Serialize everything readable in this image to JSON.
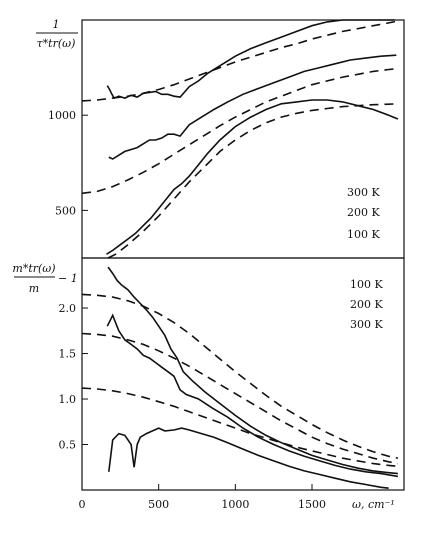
{
  "chart_data": [
    {
      "type": "line",
      "panel": "top",
      "ylabel_lines": [
        "1",
        "τ*tr(ω)"
      ],
      "xlim": [
        0,
        2100
      ],
      "ylim": [
        250,
        1500
      ],
      "yticks": [
        {
          "value": 1000,
          "label": "1000"
        },
        {
          "value": 500,
          "label": "500"
        }
      ],
      "legend": [
        "300 K",
        "200 K",
        "100 K"
      ],
      "legend_position": "bottom-right",
      "series": [
        {
          "style": "solid",
          "label": "300 K",
          "x": [
            165,
            180,
            195,
            210,
            240,
            280,
            320,
            360,
            400,
            440,
            480,
            520,
            560,
            600,
            640,
            700,
            760,
            820,
            900,
            1000,
            1100,
            1200,
            1300,
            1400,
            1500,
            1600,
            1700,
            1800,
            1900,
            2000,
            2040
          ],
          "y": [
            1155,
            1135,
            1110,
            1090,
            1100,
            1090,
            1105,
            1095,
            1115,
            1120,
            1125,
            1110,
            1110,
            1100,
            1095,
            1150,
            1180,
            1220,
            1260,
            1310,
            1350,
            1380,
            1410,
            1440,
            1470,
            1490,
            1505,
            1515,
            1520,
            1525,
            1525
          ]
        },
        {
          "style": "solid",
          "label": "200 K",
          "x": [
            175,
            200,
            240,
            280,
            320,
            360,
            400,
            440,
            480,
            520,
            560,
            600,
            640,
            700,
            780,
            860,
            950,
            1050,
            1150,
            1250,
            1350,
            1450,
            1550,
            1650,
            1750,
            1850,
            1950,
            2050
          ],
          "y": [
            780,
            770,
            790,
            810,
            820,
            830,
            850,
            870,
            870,
            880,
            900,
            900,
            890,
            950,
            990,
            1030,
            1070,
            1110,
            1140,
            1170,
            1200,
            1230,
            1250,
            1270,
            1290,
            1300,
            1310,
            1315
          ]
        },
        {
          "style": "solid",
          "label": "100 K",
          "x": [
            160,
            200,
            250,
            300,
            350,
            400,
            450,
            500,
            550,
            600,
            650,
            700,
            760,
            820,
            900,
            1000,
            1100,
            1200,
            1300,
            1400,
            1500,
            1600,
            1700,
            1800,
            1900,
            2000,
            2060
          ],
          "y": [
            270,
            290,
            320,
            350,
            380,
            420,
            460,
            510,
            560,
            610,
            640,
            680,
            740,
            800,
            870,
            940,
            990,
            1030,
            1060,
            1070,
            1080,
            1080,
            1070,
            1050,
            1030,
            1000,
            980
          ]
        },
        {
          "style": "dashed",
          "x": [
            0,
            100,
            200,
            300,
            400,
            500,
            600,
            700,
            800,
            900,
            1000,
            1100,
            1200,
            1300,
            1400,
            1500,
            1600,
            1700,
            1800,
            1900,
            2000,
            2060
          ],
          "y": [
            1075,
            1080,
            1090,
            1100,
            1115,
            1135,
            1160,
            1190,
            1220,
            1250,
            1280,
            1305,
            1330,
            1355,
            1375,
            1400,
            1420,
            1440,
            1455,
            1470,
            1485,
            1495
          ]
        },
        {
          "style": "dashed",
          "x": [
            0,
            100,
            200,
            300,
            400,
            500,
            600,
            700,
            800,
            900,
            1000,
            1100,
            1200,
            1300,
            1400,
            1500,
            1600,
            1700,
            1800,
            1900,
            2000,
            2060
          ],
          "y": [
            590,
            600,
            625,
            660,
            700,
            745,
            795,
            845,
            895,
            945,
            990,
            1030,
            1070,
            1100,
            1130,
            1160,
            1180,
            1200,
            1215,
            1230,
            1240,
            1245
          ]
        },
        {
          "style": "dashed",
          "x": [
            170,
            220,
            300,
            400,
            500,
            600,
            700,
            800,
            900,
            1000,
            1100,
            1200,
            1300,
            1400,
            1500,
            1600,
            1700,
            1800,
            1900,
            2000,
            2060
          ],
          "y": [
            250,
            270,
            320,
            390,
            470,
            560,
            650,
            730,
            810,
            870,
            920,
            960,
            990,
            1010,
            1025,
            1035,
            1045,
            1050,
            1055,
            1058,
            1060
          ]
        }
      ]
    },
    {
      "type": "line",
      "panel": "bottom",
      "ylabel_lines": [
        "m*tr(ω)",
        "m",
        "− 1"
      ],
      "xlabel": "ω, cm⁻¹",
      "xlim": [
        0,
        2100
      ],
      "ylim": [
        0,
        2.55
      ],
      "xticks": [
        {
          "value": 0,
          "label": "0"
        },
        {
          "value": 500,
          "label": "500"
        },
        {
          "value": 1000,
          "label": "1000"
        },
        {
          "value": 1500,
          "label": "1500"
        }
      ],
      "yticks": [
        {
          "value": 2.0,
          "label": "2.0"
        },
        {
          "value": 1.5,
          "label": "1.5"
        },
        {
          "value": 1.0,
          "label": "1.0"
        },
        {
          "value": 0.5,
          "label": "0.5"
        }
      ],
      "legend": [
        "100 K",
        "200 K",
        "300 K"
      ],
      "legend_position": "top-right",
      "series": [
        {
          "style": "solid",
          "label": "100 K",
          "x": [
            170,
            200,
            230,
            260,
            300,
            340,
            380,
            420,
            460,
            500,
            540,
            580,
            620,
            660,
            720,
            800,
            900,
            1000,
            1100,
            1200,
            1300,
            1400,
            1500,
            1600,
            1700,
            1800,
            1900,
            2000,
            2060
          ],
          "y": [
            2.45,
            2.38,
            2.3,
            2.25,
            2.2,
            2.12,
            2.05,
            1.98,
            1.9,
            1.8,
            1.7,
            1.55,
            1.45,
            1.3,
            1.2,
            1.08,
            0.95,
            0.82,
            0.7,
            0.6,
            0.52,
            0.45,
            0.38,
            0.33,
            0.28,
            0.24,
            0.21,
            0.19,
            0.18
          ]
        },
        {
          "style": "solid",
          "label": "200 K",
          "x": [
            165,
            200,
            240,
            280,
            320,
            360,
            400,
            440,
            480,
            520,
            560,
            600,
            640,
            680,
            760,
            850,
            950,
            1050,
            1150,
            1250,
            1350,
            1450,
            1550,
            1650,
            1750,
            1850,
            1950,
            2060
          ],
          "y": [
            1.8,
            1.92,
            1.75,
            1.65,
            1.6,
            1.55,
            1.48,
            1.45,
            1.4,
            1.35,
            1.3,
            1.25,
            1.1,
            1.05,
            1.0,
            0.9,
            0.8,
            0.68,
            0.58,
            0.5,
            0.43,
            0.37,
            0.32,
            0.27,
            0.23,
            0.2,
            0.18,
            0.15
          ]
        },
        {
          "style": "solid",
          "label": "300 K",
          "x": [
            175,
            200,
            240,
            280,
            320,
            340,
            360,
            380,
            420,
            460,
            500,
            540,
            600,
            650,
            700,
            780,
            860,
            950,
            1050,
            1150,
            1250,
            1350,
            1450,
            1550,
            1650,
            1750,
            1850,
            1950,
            2000
          ],
          "y": [
            0.2,
            0.55,
            0.62,
            0.6,
            0.5,
            0.25,
            0.5,
            0.58,
            0.62,
            0.65,
            0.68,
            0.65,
            0.66,
            0.68,
            0.66,
            0.62,
            0.58,
            0.52,
            0.45,
            0.38,
            0.32,
            0.26,
            0.21,
            0.17,
            0.13,
            0.09,
            0.06,
            0.03,
            0.02
          ]
        },
        {
          "style": "dashed",
          "x": [
            0,
            100,
            200,
            300,
            400,
            500,
            600,
            700,
            800,
            900,
            1000,
            1100,
            1200,
            1300,
            1400,
            1500,
            1600,
            1700,
            1800,
            1900,
            2000,
            2060
          ],
          "y": [
            2.15,
            2.14,
            2.12,
            2.08,
            2.02,
            1.94,
            1.84,
            1.72,
            1.58,
            1.44,
            1.3,
            1.17,
            1.04,
            0.92,
            0.82,
            0.72,
            0.63,
            0.55,
            0.48,
            0.42,
            0.37,
            0.35
          ]
        },
        {
          "style": "dashed",
          "x": [
            0,
            100,
            200,
            300,
            400,
            500,
            600,
            700,
            800,
            900,
            1000,
            1100,
            1200,
            1300,
            1400,
            1500,
            1600,
            1700,
            1800,
            1900,
            2000,
            2060
          ],
          "y": [
            1.72,
            1.71,
            1.69,
            1.65,
            1.6,
            1.53,
            1.45,
            1.36,
            1.26,
            1.16,
            1.06,
            0.96,
            0.86,
            0.76,
            0.67,
            0.58,
            0.51,
            0.45,
            0.4,
            0.35,
            0.31,
            0.29
          ]
        },
        {
          "style": "dashed",
          "x": [
            0,
            100,
            200,
            300,
            400,
            500,
            600,
            700,
            800,
            900,
            1000,
            1100,
            1200,
            1300,
            1400,
            1500,
            1600,
            1700,
            1800,
            1900,
            2000,
            2060
          ],
          "y": [
            1.12,
            1.11,
            1.09,
            1.06,
            1.02,
            0.97,
            0.92,
            0.86,
            0.8,
            0.74,
            0.68,
            0.62,
            0.57,
            0.52,
            0.47,
            0.43,
            0.39,
            0.35,
            0.32,
            0.29,
            0.27,
            0.26
          ]
        }
      ]
    }
  ]
}
